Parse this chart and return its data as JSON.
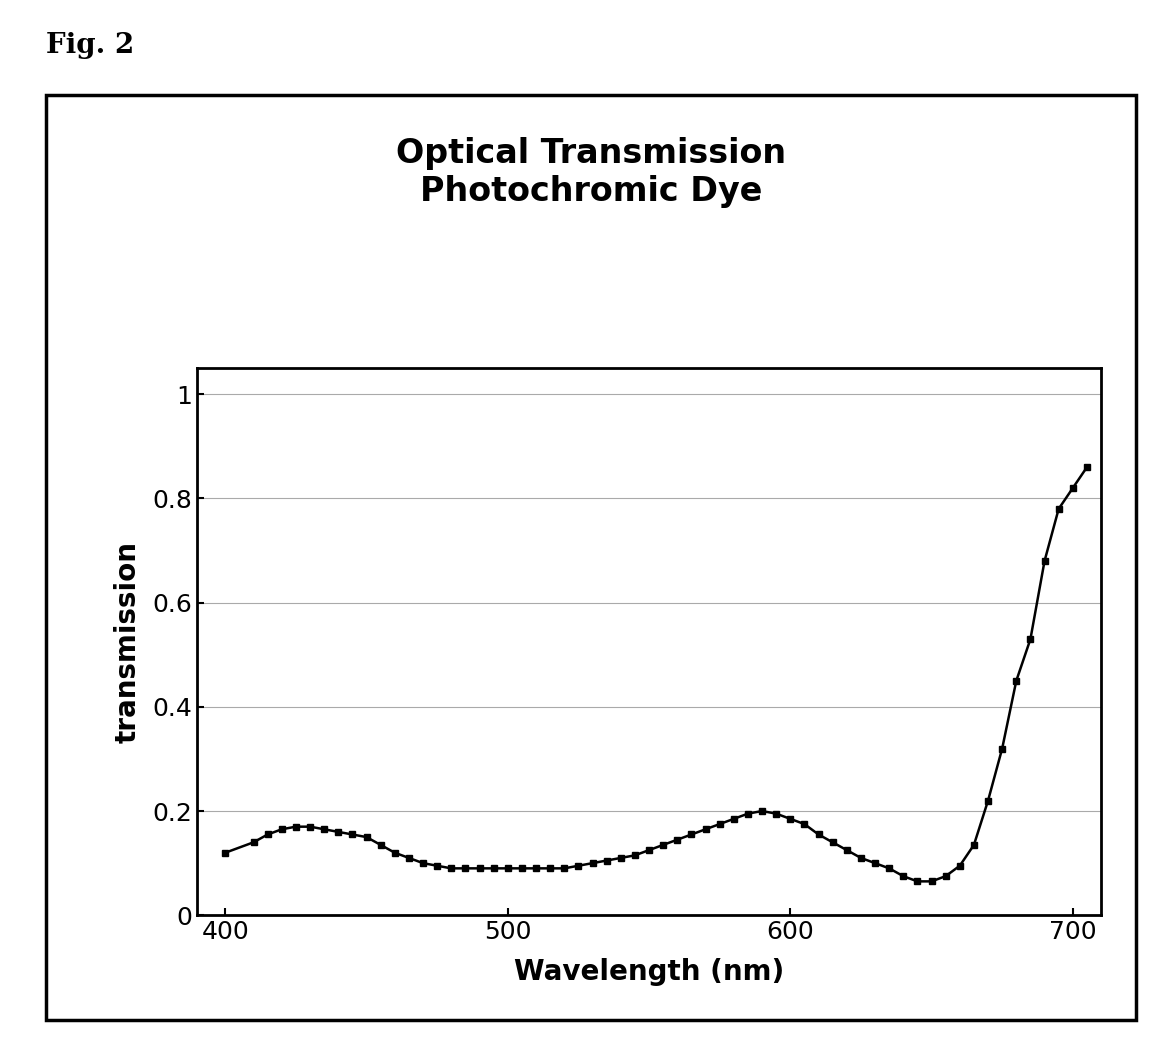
{
  "title_line1": "Optical Transmission",
  "title_line2": "Photochromic Dye",
  "xlabel": "Wavelength (nm)",
  "ylabel": "transmission",
  "fig_label": "Fig. 2",
  "xlim": [
    390,
    710
  ],
  "ylim": [
    0,
    1.05
  ],
  "xticks": [
    400,
    500,
    600,
    700
  ],
  "yticks": [
    0,
    0.2,
    0.4,
    0.6,
    0.8,
    1
  ],
  "x": [
    400,
    410,
    415,
    420,
    425,
    430,
    435,
    440,
    445,
    450,
    455,
    460,
    465,
    470,
    475,
    480,
    485,
    490,
    495,
    500,
    505,
    510,
    515,
    520,
    525,
    530,
    535,
    540,
    545,
    550,
    555,
    560,
    565,
    570,
    575,
    580,
    585,
    590,
    595,
    600,
    605,
    610,
    615,
    620,
    625,
    630,
    635,
    640,
    645,
    650,
    655,
    660,
    665,
    670,
    675,
    680,
    685,
    690,
    695,
    700,
    705
  ],
  "y": [
    0.12,
    0.14,
    0.155,
    0.165,
    0.17,
    0.17,
    0.165,
    0.16,
    0.155,
    0.15,
    0.135,
    0.12,
    0.11,
    0.1,
    0.095,
    0.09,
    0.09,
    0.09,
    0.09,
    0.09,
    0.09,
    0.09,
    0.09,
    0.09,
    0.095,
    0.1,
    0.105,
    0.11,
    0.115,
    0.125,
    0.135,
    0.145,
    0.155,
    0.165,
    0.175,
    0.185,
    0.195,
    0.2,
    0.195,
    0.185,
    0.175,
    0.155,
    0.14,
    0.125,
    0.11,
    0.1,
    0.09,
    0.075,
    0.065,
    0.065,
    0.075,
    0.095,
    0.135,
    0.22,
    0.32,
    0.45,
    0.53,
    0.68,
    0.78,
    0.82,
    0.86
  ],
  "line_color": "#000000",
  "marker": "s",
  "marker_size": 4,
  "fig_bg_color": "#ffffff",
  "box_bg_color": "#ffffff",
  "box_border_color": "#000000",
  "title_fontsize": 24,
  "label_fontsize": 20,
  "tick_fontsize": 18,
  "fig_label_fontsize": 20,
  "grid_color": "#aaaaaa",
  "spine_linewidth": 2.0,
  "line_width": 1.8
}
